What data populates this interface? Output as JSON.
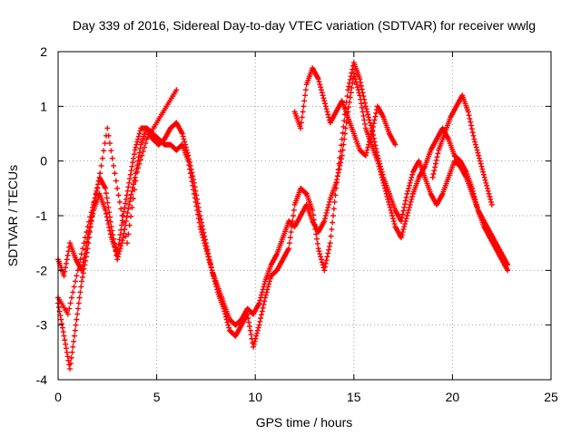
{
  "chart_data": {
    "type": "scatter",
    "title": "Day 339 of 2016, Sidereal Day-to-day VTEC variation (SDTVAR) for receiver wwlg",
    "xlabel": "GPS time / hours",
    "ylabel": "SDTVAR / TECUs",
    "xlim": [
      0,
      25
    ],
    "ylim": [
      -4,
      2
    ],
    "xticks": [
      "0",
      "5",
      "10",
      "15",
      "20",
      "25"
    ],
    "yticks": [
      "-4",
      "-3",
      "-2",
      "-1",
      "0",
      "1",
      "2"
    ],
    "grid": true,
    "marker": "+",
    "color": "#ff0000",
    "series": [
      {
        "name": "track-1",
        "x": [
          0.0,
          0.3,
          0.6,
          0.9,
          1.2,
          1.5,
          1.8,
          2.1,
          2.4,
          2.7,
          3.0,
          3.3,
          3.6,
          3.9,
          4.2,
          4.5,
          4.8,
          5.1,
          5.4,
          5.7,
          6.0,
          6.3,
          6.6,
          6.9,
          7.2,
          7.5,
          7.8,
          8.1,
          8.4,
          8.7,
          9.0,
          9.3,
          9.6,
          9.9,
          10.2,
          10.5,
          10.8,
          11.1,
          11.4,
          11.7,
          12.0,
          12.3,
          12.6,
          12.9,
          13.2,
          13.5,
          13.8,
          14.1,
          14.4,
          14.7,
          15.0,
          15.3,
          15.6,
          15.9,
          16.2,
          16.5,
          16.8,
          17.1,
          17.4,
          17.7,
          18.0,
          18.3,
          18.6,
          18.9,
          19.2,
          19.5,
          19.8,
          20.1,
          20.4,
          20.7,
          21.0,
          21.3,
          21.6,
          21.9,
          22.2,
          22.5,
          22.8
        ],
        "y": [
          -2.6,
          -3.2,
          -3.8,
          -3.0,
          -2.2,
          -1.6,
          -0.8,
          -0.3,
          -0.5,
          -1.2,
          -1.8,
          -1.4,
          -0.8,
          -0.3,
          0.3,
          0.6,
          0.5,
          0.4,
          0.3,
          0.3,
          0.2,
          0.3,
          0.0,
          -0.6,
          -1.2,
          -1.6,
          -2.0,
          -2.3,
          -2.6,
          -2.9,
          -3.0,
          -2.9,
          -2.7,
          -2.8,
          -2.6,
          -2.2,
          -1.9,
          -1.7,
          -1.4,
          -1.1,
          -1.2,
          -1.0,
          -0.8,
          -1.1,
          -1.3,
          -1.1,
          -0.7,
          -0.4,
          0.1,
          0.9,
          1.6,
          1.2,
          0.6,
          0.3,
          0.0,
          -0.4,
          -0.8,
          -1.2,
          -1.4,
          -1.0,
          -0.6,
          -0.3,
          -0.1,
          0.2,
          0.4,
          0.6,
          0.4,
          0.1,
          0.0,
          -0.2,
          -0.5,
          -0.9,
          -1.2,
          -1.4,
          -1.6,
          -1.8,
          -2.0
        ]
      },
      {
        "name": "track-2",
        "x": [
          0.0,
          0.3,
          0.6,
          0.9,
          1.2,
          1.5,
          1.8,
          2.1,
          2.4,
          2.7,
          3.0,
          3.3,
          3.6,
          3.9,
          4.2,
          4.5,
          4.8,
          5.1,
          5.4,
          5.7,
          6.0,
          6.3,
          6.6,
          6.9,
          7.2,
          7.5,
          7.8,
          8.1,
          8.4,
          8.7,
          9.0,
          9.3,
          9.6,
          9.9,
          10.2,
          10.5,
          10.8,
          11.1,
          11.4,
          11.7,
          12.0,
          12.3,
          12.6,
          12.9,
          13.2,
          13.5,
          13.8,
          14.1,
          14.4,
          14.7,
          15.0,
          15.3,
          15.6,
          15.9,
          16.2,
          16.5,
          16.8,
          17.1,
          17.4,
          17.7,
          18.0,
          18.3,
          18.6,
          18.9,
          19.2,
          19.5,
          19.8,
          20.1,
          20.4,
          20.7,
          21.0,
          21.3,
          21.6,
          21.9,
          22.2,
          22.5,
          22.8
        ],
        "y": [
          -1.8,
          -2.1,
          -1.5,
          -1.8,
          -2.0,
          -1.4,
          -0.9,
          -0.6,
          -0.9,
          -1.4,
          -1.7,
          -1.0,
          -0.4,
          0.2,
          0.6,
          0.6,
          0.4,
          0.3,
          0.4,
          0.6,
          0.7,
          0.5,
          0.1,
          -0.4,
          -1.0,
          -1.5,
          -2.0,
          -2.4,
          -2.7,
          -3.1,
          -3.2,
          -3.0,
          -2.8,
          -3.4,
          -3.0,
          -2.5,
          -2.1,
          -2.0,
          -1.8,
          -1.6,
          -0.8,
          -0.5,
          -0.6,
          -0.9,
          -1.6,
          -2.0,
          -1.5,
          -0.5,
          0.4,
          1.3,
          1.8,
          1.5,
          1.0,
          0.6,
          0.1,
          -0.3,
          -0.6,
          -0.9,
          -1.1,
          -0.6,
          -0.2,
          0.0,
          -0.3,
          -0.6,
          -0.8,
          -0.6,
          -0.3,
          0.0,
          -0.1,
          -0.3,
          -0.6,
          -0.9,
          -1.1,
          -1.3,
          -1.5,
          -1.7,
          -1.9
        ]
      },
      {
        "name": "track-3",
        "x": [
          0.0,
          0.5,
          1.0,
          1.5,
          2.0,
          2.5,
          3.0,
          3.5,
          4.0,
          4.5,
          5.0,
          5.5,
          6.0
        ],
        "y": [
          -2.5,
          -2.8,
          -2.0,
          -1.2,
          -0.5,
          0.6,
          -0.5,
          -1.5,
          -0.2,
          0.4,
          0.7,
          1.0,
          1.3
        ]
      },
      {
        "name": "track-4",
        "x": [
          12.0,
          12.3,
          12.6,
          12.9,
          13.2,
          13.5,
          13.8,
          14.1,
          14.4,
          14.7,
          15.0,
          15.3,
          15.6,
          15.9,
          16.2,
          16.5,
          16.8,
          17.1
        ],
        "y": [
          0.9,
          0.6,
          1.4,
          1.7,
          1.5,
          1.1,
          0.7,
          0.9,
          1.1,
          0.8,
          0.5,
          0.2,
          0.1,
          0.5,
          1.0,
          0.8,
          0.5,
          0.3
        ]
      },
      {
        "name": "track-5",
        "x": [
          19.0,
          19.3,
          19.6,
          19.9,
          20.2,
          20.5,
          20.8,
          21.1,
          21.4,
          21.7,
          22.0
        ],
        "y": [
          -0.3,
          0.2,
          0.5,
          0.8,
          1.0,
          1.2,
          0.9,
          0.4,
          0.0,
          -0.4,
          -0.8
        ]
      }
    ]
  }
}
